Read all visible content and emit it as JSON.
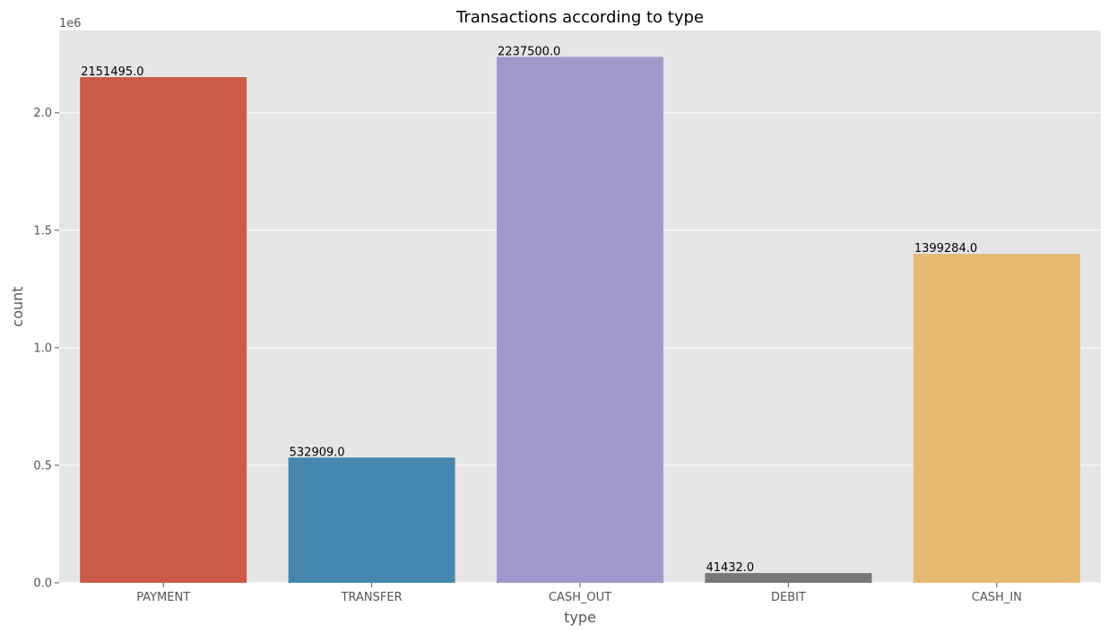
{
  "chart_data": {
    "type": "bar",
    "title": "Transactions according to type",
    "xlabel": "type",
    "ylabel": "count",
    "y_offset_text": "1e6",
    "categories": [
      "PAYMENT",
      "TRANSFER",
      "CASH_OUT",
      "DEBIT",
      "CASH_IN"
    ],
    "values": [
      2151495,
      532909,
      2237500,
      41432,
      1399284
    ],
    "data_labels": [
      "2151495.0",
      "532909.0",
      "2237500.0",
      "41432.0",
      "1399284.0"
    ],
    "colors": [
      "#cc5a47",
      "#4587ae",
      "#9f98cb",
      "#777777",
      "#e7ba72"
    ],
    "ylim": [
      0,
      2350000
    ],
    "yticks": [
      0,
      500000,
      1000000,
      1500000,
      2000000
    ],
    "ytick_labels": [
      "0.0",
      "0.5",
      "1.0",
      "1.5",
      "2.0"
    ],
    "grid": true,
    "background": "#e5e5e5",
    "grid_color": "#ffffff"
  }
}
